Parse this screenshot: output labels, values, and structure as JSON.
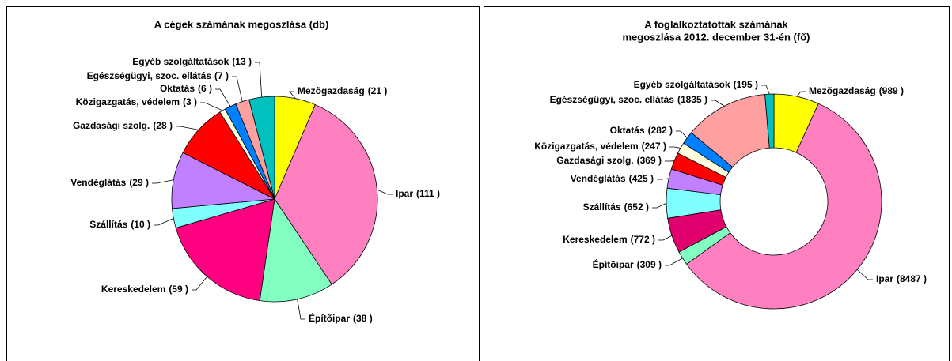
{
  "chart_data": [
    {
      "type": "pie",
      "title": [
        "A cégek számának megoszlása (db)"
      ],
      "categories": [
        "Mezõgazdaság",
        "Ipar",
        "Építõipar",
        "Kereskedelem",
        "Szállítás",
        "Vendéglátás",
        "Gazdasági szolg.",
        "Közigazgatás, védelem",
        "Oktatás",
        "Egészségügyi, szoc. ellátás",
        "Egyéb szolgáltatások"
      ],
      "values": [
        21,
        111,
        38,
        59,
        10,
        29,
        28,
        3,
        6,
        7,
        13
      ],
      "value_labels": [
        "(21 )",
        "(111 )",
        "(38 )",
        "(59 )",
        "(10 )",
        "(29 )",
        "(28 )",
        "(3 )",
        "(6 )",
        "(7 )",
        "(13 )"
      ],
      "colors": [
        "#ffff00",
        "#ff80c0",
        "#80ffc0",
        "#ff0080",
        "#80ffff",
        "#c080ff",
        "#ff0000",
        "#ffffe0",
        "#0080ff",
        "#ffa0a0",
        "#00c0c0"
      ]
    },
    {
      "type": "donut",
      "title": [
        "A foglalkoztatottak számának",
        "megoszlása 2012. december 31-én (fõ)"
      ],
      "categories": [
        "Mezõgazdaság",
        "Ipar",
        "Építõipar",
        "Kereskedelem",
        "Szállítás",
        "Vendéglátás",
        "Gazdasági szolg.",
        "Közigazgatás, védelem",
        "Oktatás",
        "Egészségügyi, szoc. ellátás",
        "Egyéb szolgáltatások"
      ],
      "values": [
        989,
        8487,
        309,
        772,
        652,
        425,
        369,
        247,
        282,
        1835,
        195
      ],
      "value_labels": [
        "(989 )",
        "(8487 )",
        "(309 )",
        "(772 )",
        "(652 )",
        "(425 )",
        "(369 )",
        "(247 )",
        "(282 )",
        "(1835 )",
        "(195 )"
      ],
      "colors": [
        "#ffff00",
        "#ff80c0",
        "#80ffc0",
        "#e0006e",
        "#80ffff",
        "#c080ff",
        "#ff0000",
        "#ffffe0",
        "#0080ff",
        "#ffa0a0",
        "#00c0c0"
      ]
    }
  ]
}
